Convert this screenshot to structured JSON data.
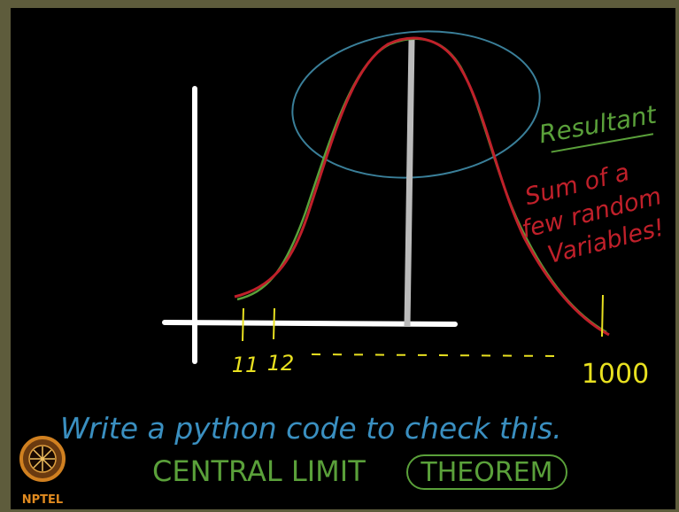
{
  "board": {
    "resultant": "Resultant",
    "note_lines": [
      "Sum of a",
      "few random",
      "Variables!"
    ],
    "axis_labels": [
      "11",
      "12",
      "1000"
    ],
    "instruction": "Write a python code to check this.",
    "topic": "CENTRAL LIMIT",
    "topic_boxed": "THEOREM"
  },
  "logo": {
    "text": "NPTEL"
  }
}
